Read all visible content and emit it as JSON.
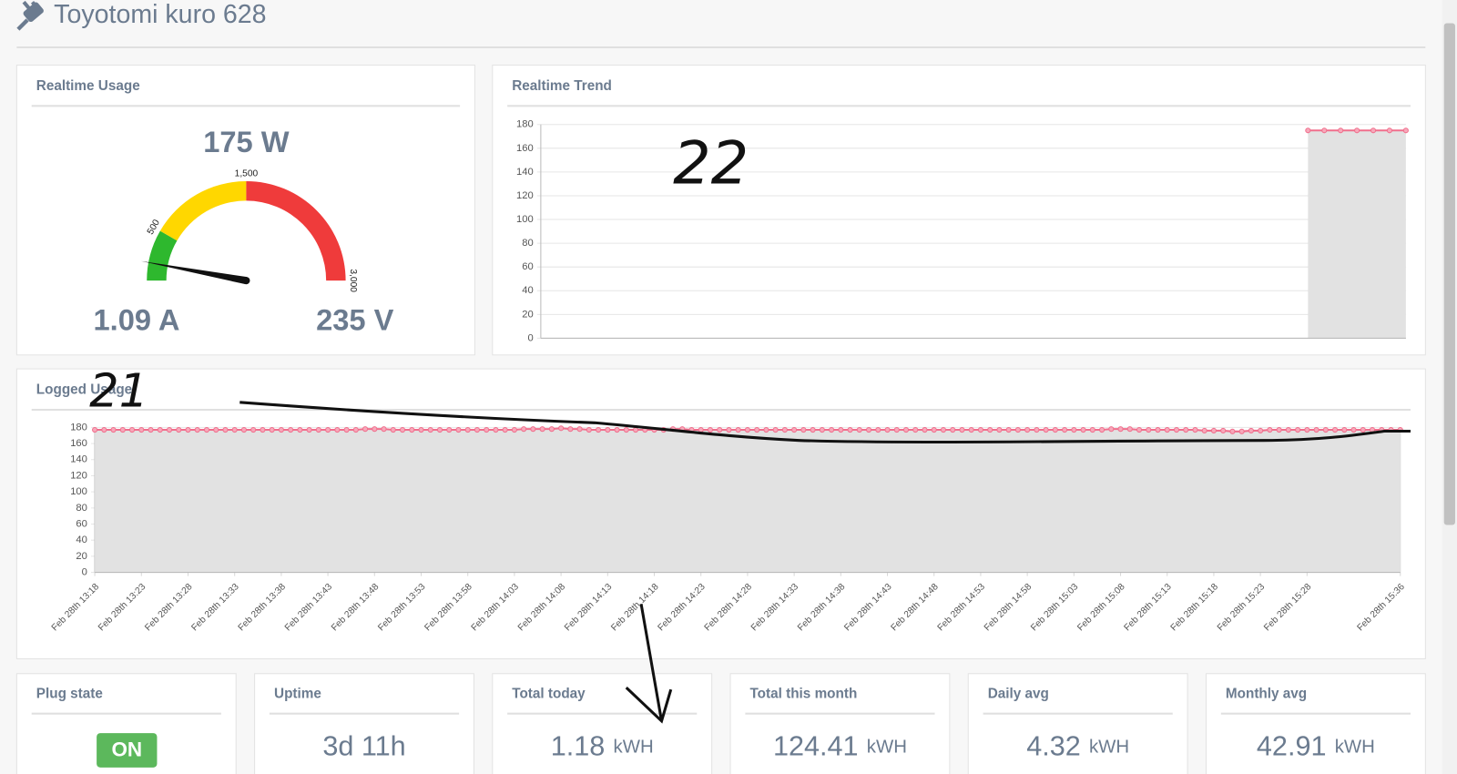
{
  "header": {
    "title": "Toyotomi kuro 628"
  },
  "chart_data": [
    {
      "type": "gauge",
      "title": "Realtime Usage",
      "value": 175,
      "value_label": "175 W",
      "lim": [
        0,
        3000
      ],
      "ticks": [
        500,
        {
          "value": 1500,
          "label": "1,500"
        },
        {
          "value": 3000,
          "label": "3,000"
        }
      ],
      "bands": [
        {
          "from": 0,
          "to": 500,
          "color": "#2eb82e"
        },
        {
          "from": 500,
          "to": 1500,
          "color": "#ffd700"
        },
        {
          "from": 1500,
          "to": 3000,
          "color": "#ef3b3b"
        }
      ],
      "current": "1.09 A",
      "voltage": "235 V"
    },
    {
      "type": "line",
      "title": "Realtime Trend",
      "color": "#f06e8c",
      "fill_color": "#e2e2e2",
      "ylim": [
        0,
        180
      ],
      "yticks": [
        0,
        20,
        40,
        60,
        80,
        100,
        120,
        140,
        160,
        180
      ],
      "grid": true,
      "values": [
        null,
        null,
        null,
        null,
        null,
        null,
        null,
        null,
        null,
        null,
        null,
        null,
        null,
        null,
        null,
        null,
        null,
        null,
        null,
        null,
        null,
        null,
        null,
        null,
        null,
        null,
        null,
        null,
        null,
        null,
        null,
        null,
        null,
        null,
        null,
        null,
        null,
        null,
        null,
        null,
        null,
        null,
        null,
        null,
        null,
        null,
        null,
        175,
        175,
        175,
        175,
        175,
        175,
        175
      ]
    },
    {
      "type": "line",
      "title": "Logged Usage",
      "color": "#f06e8c",
      "fill_color": "#e2e2e2",
      "ylim": [
        0,
        180
      ],
      "yticks": [
        0,
        20,
        40,
        60,
        80,
        100,
        120,
        140,
        160,
        180
      ],
      "grid": true,
      "categories": [
        "Feb 28th 13:18",
        null,
        null,
        null,
        null,
        "Feb 28th 13:23",
        null,
        null,
        null,
        null,
        "Feb 28th 13:28",
        null,
        null,
        null,
        null,
        "Feb 28th 13:33",
        null,
        null,
        null,
        null,
        "Feb 28th 13:38",
        null,
        null,
        null,
        null,
        "Feb 28th 13:43",
        null,
        null,
        null,
        null,
        "Feb 28th 13:48",
        null,
        null,
        null,
        null,
        "Feb 28th 13:53",
        null,
        null,
        null,
        null,
        "Feb 28th 13:58",
        null,
        null,
        null,
        null,
        "Feb 28th 14:03",
        null,
        null,
        null,
        null,
        "Feb 28th 14:08",
        null,
        null,
        null,
        null,
        "Feb 28th 14:13",
        null,
        null,
        null,
        null,
        "Feb 28th 14:18",
        null,
        null,
        null,
        null,
        "Feb 28th 14:23",
        null,
        null,
        null,
        null,
        "Feb 28th 14:28",
        null,
        null,
        null,
        null,
        "Feb 28th 14:33",
        null,
        null,
        null,
        null,
        "Feb 28th 14:38",
        null,
        null,
        null,
        null,
        "Feb 28th 14:43",
        null,
        null,
        null,
        null,
        "Feb 28th 14:48",
        null,
        null,
        null,
        null,
        "Feb 28th 14:53",
        null,
        null,
        null,
        null,
        "Feb 28th 14:58",
        null,
        null,
        null,
        null,
        "Feb 28th 15:03",
        null,
        null,
        null,
        null,
        "Feb 28th 15:08",
        null,
        null,
        null,
        null,
        "Feb 28th 15:13",
        null,
        null,
        null,
        null,
        "Feb 28th 15:18",
        null,
        null,
        null,
        null,
        "Feb 28th 15:23",
        null,
        null,
        null,
        null,
        "Feb 28th 15:28",
        null,
        null,
        null,
        null,
        null,
        null,
        null,
        null,
        null,
        "Feb 28th 15:36"
      ],
      "values": [
        177,
        177,
        177,
        177,
        177,
        177,
        177,
        177,
        177,
        177,
        177,
        177,
        177,
        177,
        177,
        177,
        177,
        177,
        177,
        177,
        177,
        177,
        177,
        177,
        177,
        177,
        177,
        177,
        177,
        178,
        178,
        178,
        177,
        177,
        177,
        177,
        177,
        177,
        177,
        177,
        177,
        177,
        177,
        177,
        177,
        177,
        178,
        178,
        178,
        178,
        179,
        178,
        178,
        177,
        177,
        177,
        177,
        177,
        177,
        177,
        177,
        177,
        178,
        178,
        177,
        177,
        177,
        177,
        177,
        177,
        177,
        177,
        177,
        177,
        177,
        177,
        177,
        177,
        177,
        177,
        177,
        177,
        177,
        177,
        177,
        177,
        177,
        177,
        177,
        177,
        177,
        177,
        177,
        177,
        177,
        177,
        177,
        177,
        177,
        177,
        177,
        177,
        177,
        177,
        177,
        177,
        177,
        177,
        177,
        178,
        178,
        178,
        177,
        177,
        177,
        177,
        177,
        177,
        177,
        176,
        176,
        176,
        175,
        175,
        176,
        176,
        177,
        177,
        177,
        177,
        177,
        177,
        177,
        177,
        177,
        177,
        177,
        177,
        177,
        177,
        177
      ]
    }
  ],
  "cards": [
    {
      "title": "Plug state",
      "state": "ON"
    },
    {
      "title": "Uptime",
      "value": "3d 11h"
    },
    {
      "title": "Total today",
      "value": "1.18",
      "unit": "kWH"
    },
    {
      "title": "Total this month",
      "value": "124.41",
      "unit": "kWH"
    },
    {
      "title": "Daily avg",
      "value": "4.32",
      "unit": "kWH"
    },
    {
      "title": "Monthly avg",
      "value": "42.91",
      "unit": "kWH"
    }
  ],
  "annotations": [
    {
      "text": "22"
    },
    {
      "text": "21"
    }
  ]
}
